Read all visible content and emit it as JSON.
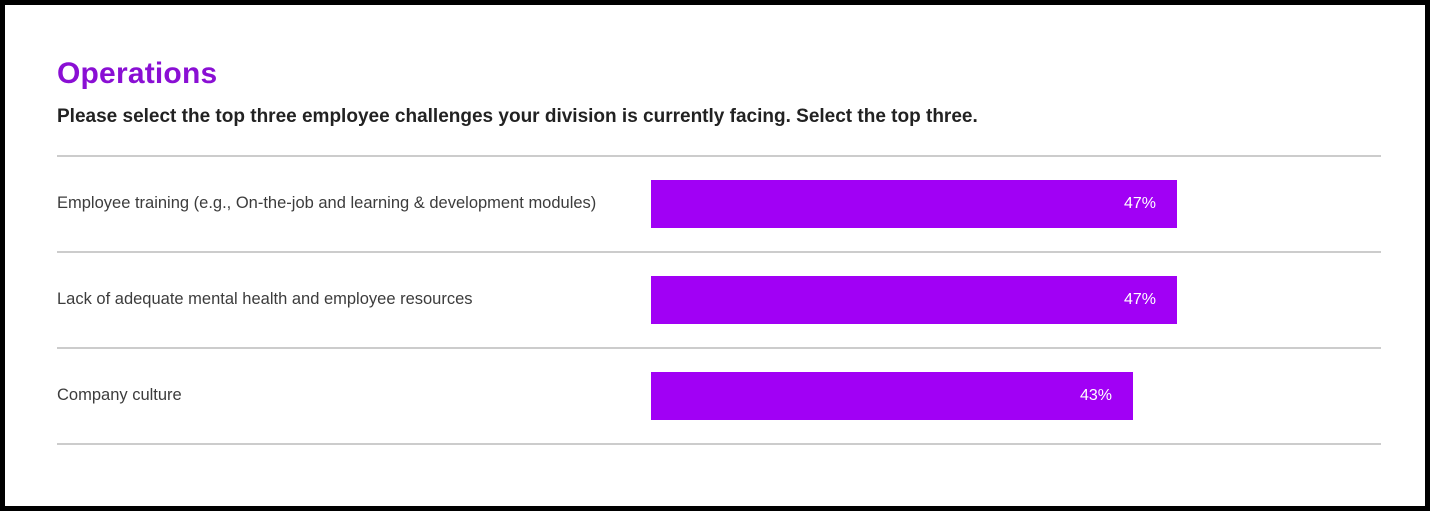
{
  "header": {
    "title": "Operations",
    "question": "Please select the top three employee challenges your division is currently facing. Select the top three."
  },
  "colors": {
    "title": "#8a0fd4",
    "bar": "#a100f5",
    "bar_value_text": "#ffffff",
    "divider": "#cccccc",
    "question_text": "#222222",
    "category_text": "#3c3c3c"
  },
  "chart_data": {
    "type": "bar",
    "orientation": "horizontal",
    "title": "Operations",
    "subtitle": "Please select the top three employee challenges your division is currently facing. Select the top three.",
    "categories": [
      "Employee training (e.g., On-the-job and learning & development modules)",
      "Lack of adequate mental health and employee resources",
      "Company culture"
    ],
    "values": [
      47,
      47,
      43
    ],
    "value_labels": [
      "47%",
      "47%",
      "43%"
    ],
    "unit": "%",
    "xlabel": "",
    "ylabel": "",
    "grid": false,
    "legend": null,
    "bar_color": "#a100f5",
    "value_label_position": "inside-right"
  }
}
